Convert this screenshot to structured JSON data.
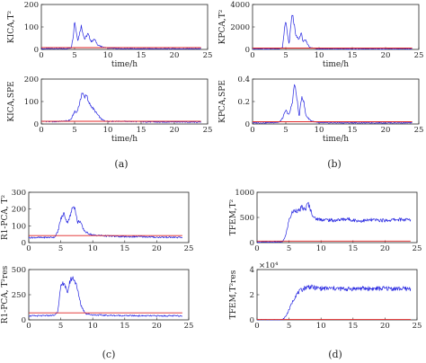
{
  "panel_labels": [
    "(a)",
    "(b)",
    "(c)",
    "(d)"
  ],
  "series_colors": {
    "statistic": "#2424e0",
    "control_limit": "#e02424"
  },
  "chart_data": [
    {
      "type": "line",
      "panel": "(a)",
      "ylabel": "KICA,T²",
      "xlabel": "time/h",
      "xlim": [
        0,
        25
      ],
      "ylim": [
        0,
        200
      ],
      "xticks": [
        "0",
        "5",
        "10",
        "15",
        "20",
        "25"
      ],
      "yticks": [
        "0",
        "100",
        "200"
      ],
      "control_limit": 8,
      "x": [
        0,
        1,
        2,
        3,
        4,
        4.5,
        4.8,
        5,
        5.3,
        5.5,
        6,
        6.2,
        6.5,
        7,
        7.5,
        8,
        8.5,
        9,
        10,
        11,
        12,
        15,
        18,
        20,
        22,
        24
      ],
      "values": [
        3,
        3,
        4,
        3,
        4,
        8,
        60,
        130,
        70,
        40,
        105,
        80,
        45,
        70,
        35,
        45,
        20,
        12,
        6,
        4,
        3,
        3,
        3,
        3,
        3,
        3
      ]
    },
    {
      "type": "line",
      "panel": "(a)",
      "ylabel": "KICA,SPE",
      "xlabel": "time/h",
      "xlim": [
        0,
        25
      ],
      "ylim": [
        0,
        200
      ],
      "xticks": [
        "0",
        "5",
        "10",
        "15",
        "20",
        "25"
      ],
      "yticks": [
        "0",
        "100",
        "200"
      ],
      "control_limit": 12,
      "x": [
        0,
        2,
        4,
        4.5,
        5,
        5.3,
        5.8,
        6.1,
        6.5,
        6.8,
        7,
        7.5,
        8,
        8.5,
        9,
        9.5,
        10,
        12,
        15,
        18,
        20,
        22,
        24
      ],
      "values": [
        12,
        10,
        14,
        22,
        55,
        50,
        95,
        140,
        120,
        135,
        100,
        80,
        60,
        40,
        22,
        14,
        12,
        12,
        10,
        8,
        10,
        8,
        8
      ]
    },
    {
      "type": "line",
      "panel": "(b)",
      "ylabel": "KPCA,T²",
      "xlabel": "time/h",
      "xlim": [
        0,
        25
      ],
      "ylim": [
        0,
        4000
      ],
      "xticks": [
        "0",
        "5",
        "10",
        "15",
        "20",
        "25"
      ],
      "yticks": [
        "0",
        "2000",
        "4000"
      ],
      "control_limit": 120,
      "x": [
        0,
        2,
        4,
        4.5,
        4.8,
        5,
        5.2,
        5.5,
        5.8,
        6,
        6.2,
        6.5,
        7,
        7.3,
        7.6,
        8,
        8.5,
        9,
        10,
        12,
        15,
        18,
        20,
        22,
        24
      ],
      "values": [
        40,
        40,
        60,
        150,
        1800,
        2600,
        1500,
        400,
        2500,
        3100,
        2500,
        1200,
        900,
        1500,
        700,
        800,
        250,
        120,
        60,
        40,
        40,
        40,
        40,
        40,
        40
      ]
    },
    {
      "type": "line",
      "panel": "(b)",
      "ylabel": "KPCA,SPE",
      "xlabel": "time/h",
      "xlim": [
        0,
        25
      ],
      "ylim": [
        0,
        0.4
      ],
      "xticks": [
        "0",
        "5",
        "10",
        "15",
        "20",
        "25"
      ],
      "yticks": [
        "0",
        "0.2",
        "0.4"
      ],
      "control_limit": 0.02,
      "x": [
        0,
        2,
        4,
        4.5,
        5,
        5.5,
        6,
        6.3,
        6.7,
        7,
        7.4,
        7.7,
        8,
        8.4,
        8.8,
        9.5,
        10,
        12,
        15,
        18,
        20,
        22,
        24
      ],
      "values": [
        0.01,
        0.01,
        0.015,
        0.05,
        0.12,
        0.08,
        0.2,
        0.36,
        0.22,
        0.06,
        0.25,
        0.2,
        0.08,
        0.05,
        0.03,
        0.015,
        0.01,
        0.01,
        0.01,
        0.01,
        0.01,
        0.01,
        0.01
      ]
    },
    {
      "type": "line",
      "panel": "(c)",
      "ylabel": "R1-PCA, T²",
      "xlabel": "",
      "xlim": [
        0,
        25
      ],
      "ylim": [
        0,
        300
      ],
      "xticks": [
        "0",
        "5",
        "10",
        "15",
        "20",
        "25"
      ],
      "yticks": [
        "0",
        "100",
        "200",
        "300"
      ],
      "control_limit": 42,
      "x": [
        0,
        2,
        4,
        4.5,
        5,
        5.5,
        6,
        6.5,
        7,
        7.3,
        7.6,
        8,
        8.5,
        9,
        10,
        12,
        15,
        18,
        20,
        22,
        24
      ],
      "values": [
        30,
        30,
        32,
        60,
        140,
        175,
        120,
        160,
        230,
        190,
        120,
        130,
        80,
        60,
        45,
        40,
        35,
        35,
        32,
        32,
        30
      ]
    },
    {
      "type": "line",
      "panel": "(c)",
      "ylabel": "R1-PCA, T²res",
      "xlabel": "",
      "xlim": [
        0,
        25
      ],
      "ylim": [
        0,
        500
      ],
      "xticks": [
        "0",
        "5",
        "10",
        "15",
        "20",
        "25"
      ],
      "yticks": [
        "0",
        "250",
        "500"
      ],
      "control_limit": 70,
      "x": [
        0,
        2,
        4,
        4.5,
        5,
        5.5,
        6,
        6.5,
        7,
        7.4,
        7.8,
        8.2,
        8.6,
        9,
        10,
        12,
        15,
        18,
        20,
        22,
        24
      ],
      "values": [
        40,
        40,
        45,
        80,
        320,
        380,
        260,
        400,
        420,
        350,
        250,
        140,
        90,
        60,
        50,
        45,
        42,
        40,
        40,
        40,
        40
      ]
    },
    {
      "type": "line",
      "panel": "(d)",
      "ylabel": "TFEM,T²",
      "xlabel": "",
      "xlim": [
        0,
        25
      ],
      "ylim": [
        0,
        1000
      ],
      "xticks": [
        "0",
        "5",
        "10",
        "15",
        "20",
        "25"
      ],
      "yticks": [
        "0",
        "500",
        "1000"
      ],
      "control_limit": 30,
      "x": [
        0,
        2,
        4,
        4.5,
        5,
        5.5,
        6,
        6.5,
        7,
        7.5,
        8,
        8.5,
        9,
        10,
        12,
        14,
        16,
        18,
        20,
        22,
        24
      ],
      "values": [
        10,
        10,
        15,
        150,
        450,
        600,
        650,
        620,
        700,
        650,
        780,
        600,
        480,
        460,
        440,
        470,
        430,
        450,
        440,
        460,
        450
      ]
    },
    {
      "type": "line",
      "panel": "(d)",
      "ylabel": "TFEM,T²res",
      "xlabel": "",
      "xlim": [
        0,
        25
      ],
      "ylim": [
        0,
        40000
      ],
      "scale_label": "×10⁴",
      "xticks": [
        "0",
        "5",
        "10",
        "15",
        "20",
        "25"
      ],
      "yticks": [
        "0",
        "2",
        "4"
      ],
      "control_limit": 300,
      "x": [
        0,
        2,
        4,
        4.5,
        5,
        5.5,
        6,
        6.5,
        7,
        7.5,
        8,
        9,
        10,
        12,
        14,
        16,
        18,
        20,
        22,
        24
      ],
      "values": [
        50,
        50,
        100,
        3000,
        8000,
        14000,
        19000,
        22000,
        24000,
        25500,
        26500,
        25500,
        25000,
        25000,
        24500,
        25000,
        24800,
        25000,
        24800,
        24700
      ]
    }
  ]
}
